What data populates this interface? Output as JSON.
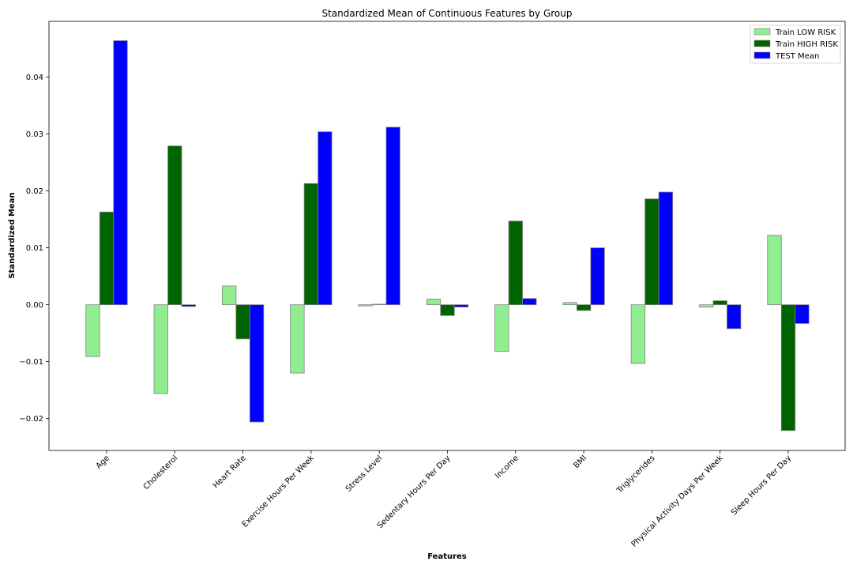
{
  "chart_data": {
    "type": "bar",
    "title": "Standardized Mean of Continuous Features by Group",
    "xlabel": "Features",
    "ylabel": "Standardized Mean",
    "categories": [
      "Age",
      "Cholesterol",
      "Heart Rate",
      "Exercise Hours Per Week",
      "Stress Level",
      "Sedentary Hours Per Day",
      "Income",
      "BMI",
      "Triglycerides",
      "Physical Activity Days Per Week",
      "Sleep Hours Per Day"
    ],
    "series": [
      {
        "name": "Train LOW RISK",
        "color": "#90ee90",
        "values": [
          -0.0091,
          -0.0156,
          0.0033,
          -0.012,
          -0.0002,
          0.001,
          -0.0082,
          0.0004,
          -0.0103,
          -0.0004,
          0.0122
        ]
      },
      {
        "name": "Train HIGH RISK",
        "color": "#006400",
        "values": [
          0.0163,
          0.0279,
          -0.006,
          0.0213,
          0.0001,
          -0.0019,
          0.0147,
          -0.001,
          0.0186,
          0.0007,
          -0.0221
        ]
      },
      {
        "name": "TEST Mean",
        "color": "#0000ff",
        "values": [
          0.0464,
          -0.0003,
          -0.0206,
          0.0304,
          0.0312,
          -0.0004,
          0.0011,
          0.01,
          0.0198,
          -0.0042,
          -0.0033
        ]
      }
    ],
    "yticks": [
      -0.02,
      -0.01,
      0.0,
      0.01,
      0.02,
      0.03,
      0.04
    ],
    "ytick_labels": [
      "−0.02",
      "−0.01",
      "0.00",
      "0.01",
      "0.02",
      "0.03",
      "0.04"
    ],
    "ylim": [
      -0.0256,
      0.0498
    ],
    "grid": false,
    "legend_position": "top-right",
    "bar_edge_color": "#808080"
  }
}
